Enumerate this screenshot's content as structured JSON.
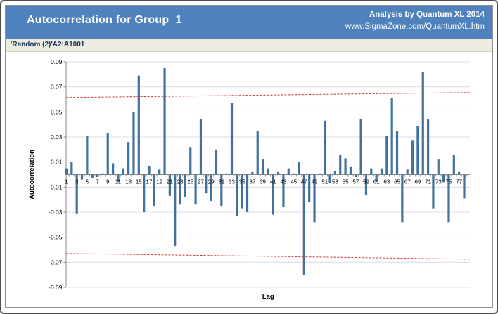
{
  "header": {
    "title": "Autocorrelation for Group  1",
    "byline": "Analysis by Quantum XL 2014",
    "url": "www.SigmaZone.com/QuantumXL.htm"
  },
  "subheader": {
    "range_label": "'Random (2)'A2:A1001"
  },
  "colors": {
    "header_bg": "#4F81BD",
    "header_text": "#FFFFFF",
    "subheader_bg": "#EEECE1",
    "subheader_text": "#17375D",
    "bar": "#41719C",
    "conf_line": "#CC3232",
    "gridline": "#DCDCE8",
    "axis": "#8A8A8A",
    "text": "#000000"
  },
  "chart_data": {
    "type": "bar",
    "title": "Autocorrelation for Group  1",
    "xlabel": "Lag",
    "ylabel": "Autocorrelation",
    "ylim": [
      -0.09,
      0.09
    ],
    "grid": true,
    "lags": [
      1,
      2,
      3,
      4,
      5,
      6,
      7,
      8,
      9,
      10,
      11,
      12,
      13,
      14,
      15,
      16,
      17,
      18,
      19,
      20,
      21,
      22,
      23,
      24,
      25,
      26,
      27,
      28,
      29,
      30,
      31,
      32,
      33,
      34,
      35,
      36,
      37,
      38,
      39,
      40,
      41,
      42,
      43,
      44,
      45,
      46,
      47,
      48,
      49,
      50,
      51,
      52,
      53,
      54,
      55,
      56,
      57,
      58,
      59,
      60,
      61,
      62,
      63,
      64,
      65,
      66,
      67,
      68,
      69,
      70,
      71,
      72,
      73,
      74,
      75,
      76,
      77,
      78
    ],
    "values": [
      0.005,
      0.01,
      -0.031,
      -0.004,
      0.031,
      -0.003,
      -0.002,
      0.001,
      0.033,
      0.009,
      -0.006,
      0.005,
      0.026,
      0.05,
      0.079,
      -0.03,
      0.007,
      -0.025,
      0.004,
      0.085,
      -0.017,
      -0.057,
      -0.024,
      -0.018,
      0.022,
      -0.024,
      0.044,
      -0.015,
      -0.021,
      0.02,
      -0.025,
      0.001,
      0.057,
      -0.033,
      -0.027,
      -0.03,
      0.002,
      0.035,
      0.012,
      0.005,
      -0.032,
      0.002,
      -0.026,
      0.005,
      0.001,
      0.01,
      -0.08,
      -0.022,
      -0.038,
      0.001,
      0.043,
      -0.007,
      0.003,
      0.016,
      0.013,
      0.006,
      -0.002,
      0.044,
      -0.016,
      0.005,
      -0.006,
      0.005,
      0.031,
      0.061,
      0.035,
      -0.038,
      0.004,
      0.027,
      0.039,
      0.082,
      0.044,
      -0.027,
      0.012,
      -0.006,
      -0.038,
      0.016,
      0.002,
      -0.019
    ],
    "y_tick_labels": [
      "0.09",
      "0.07",
      "0.05",
      "0.03",
      "0.01",
      "-0.01",
      "-0.03",
      "-0.05",
      "-0.07",
      "-0.09"
    ],
    "y_tick_values": [
      0.09,
      0.07,
      0.05,
      0.03,
      0.01,
      -0.01,
      -0.03,
      -0.05,
      -0.07,
      -0.09
    ],
    "x_tick_labels": [
      "1",
      "3",
      "5",
      "7",
      "9",
      "11",
      "13",
      "15",
      "17",
      "19",
      "21",
      "23",
      "25",
      "27",
      "29",
      "31",
      "33",
      "35",
      "37",
      "39",
      "41",
      "43",
      "45",
      "47",
      "49",
      "51",
      "53",
      "55",
      "57",
      "59",
      "61",
      "63",
      "65",
      "67",
      "69",
      "71",
      "73",
      "75",
      "77"
    ],
    "confidence_limits": {
      "upper_start": 0.0615,
      "upper_end": 0.0655,
      "lower_start": -0.063,
      "lower_end": -0.0675
    },
    "legend": null
  }
}
